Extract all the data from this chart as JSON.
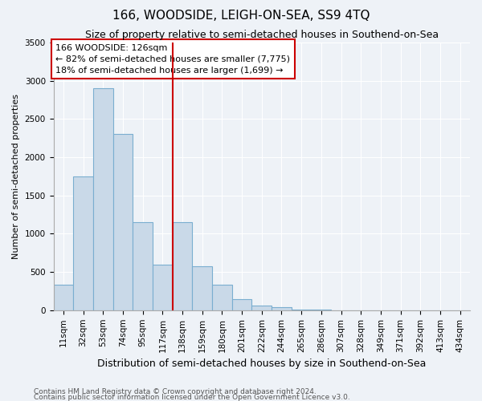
{
  "title": "166, WOODSIDE, LEIGH-ON-SEA, SS9 4TQ",
  "subtitle": "Size of property relative to semi-detached houses in Southend-on-Sea",
  "xlabel": "Distribution of semi-detached houses by size in Southend-on-Sea",
  "ylabel": "Number of semi-detached properties",
  "footnote1": "Contains HM Land Registry data © Crown copyright and database right 2024.",
  "footnote2": "Contains public sector information licensed under the Open Government Licence v3.0.",
  "bin_labels": [
    "11sqm",
    "32sqm",
    "53sqm",
    "74sqm",
    "95sqm",
    "117sqm",
    "138sqm",
    "159sqm",
    "180sqm",
    "201sqm",
    "222sqm",
    "244sqm",
    "265sqm",
    "286sqm",
    "307sqm",
    "328sqm",
    "349sqm",
    "371sqm",
    "392sqm",
    "413sqm",
    "434sqm"
  ],
  "bar_values": [
    330,
    1750,
    2900,
    2300,
    1150,
    600,
    1150,
    570,
    330,
    150,
    65,
    45,
    5,
    5,
    0,
    0,
    0,
    0,
    0,
    0,
    0
  ],
  "bar_color": "#c9d9e8",
  "bar_edge_color": "#7aaed0",
  "vline_x": 5.5,
  "vline_color": "#cc0000",
  "ylim": [
    0,
    3500
  ],
  "yticks": [
    0,
    500,
    1000,
    1500,
    2000,
    2500,
    3000,
    3500
  ],
  "annotation_title": "166 WOODSIDE: 126sqm",
  "annotation_line1": "← 82% of semi-detached houses are smaller (7,775)",
  "annotation_line2": "18% of semi-detached houses are larger (1,699) →",
  "annotation_box_color": "#ffffff",
  "annotation_box_edge_color": "#cc0000",
  "bg_color": "#eef2f7",
  "grid_color": "#ffffff",
  "title_fontsize": 11,
  "subtitle_fontsize": 9,
  "ylabel_fontsize": 8,
  "xlabel_fontsize": 9,
  "tick_fontsize": 7.5,
  "annotation_fontsize": 8,
  "footnote_fontsize": 6.5
}
